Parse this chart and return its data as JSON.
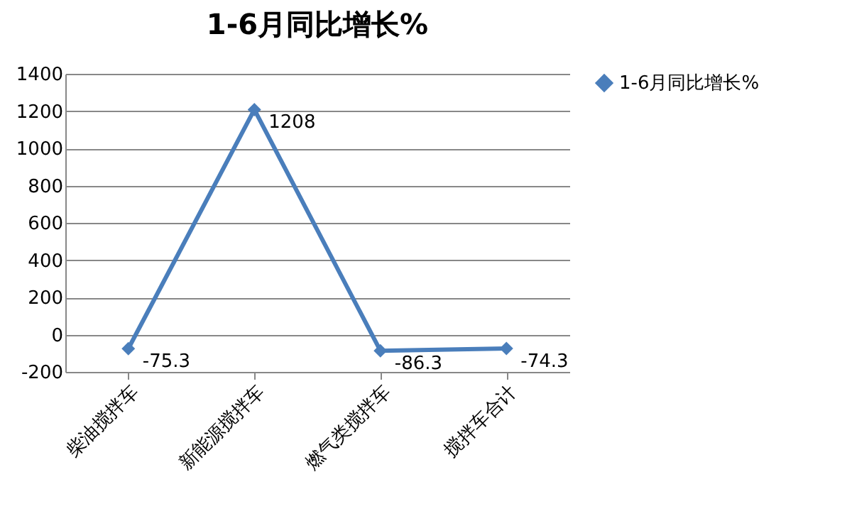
{
  "chart_data": {
    "type": "line",
    "title": "1-6月同比增长%",
    "categories": [
      "柴油搅拌车",
      "新能源搅拌车",
      "燃气类搅拌车",
      "搅拌车合计"
    ],
    "series": [
      {
        "name": "1-6月同比增长%",
        "color": "#4a7ebb",
        "values": [
          -75.3,
          1208,
          -86.3,
          -74.3
        ]
      }
    ],
    "ylim": [
      -200,
      1400
    ],
    "yticks": [
      -200,
      0,
      200,
      400,
      600,
      800,
      1000,
      1200,
      1400
    ],
    "grid": "y",
    "legend": "right",
    "marker": "diamond",
    "data_labels": true
  }
}
